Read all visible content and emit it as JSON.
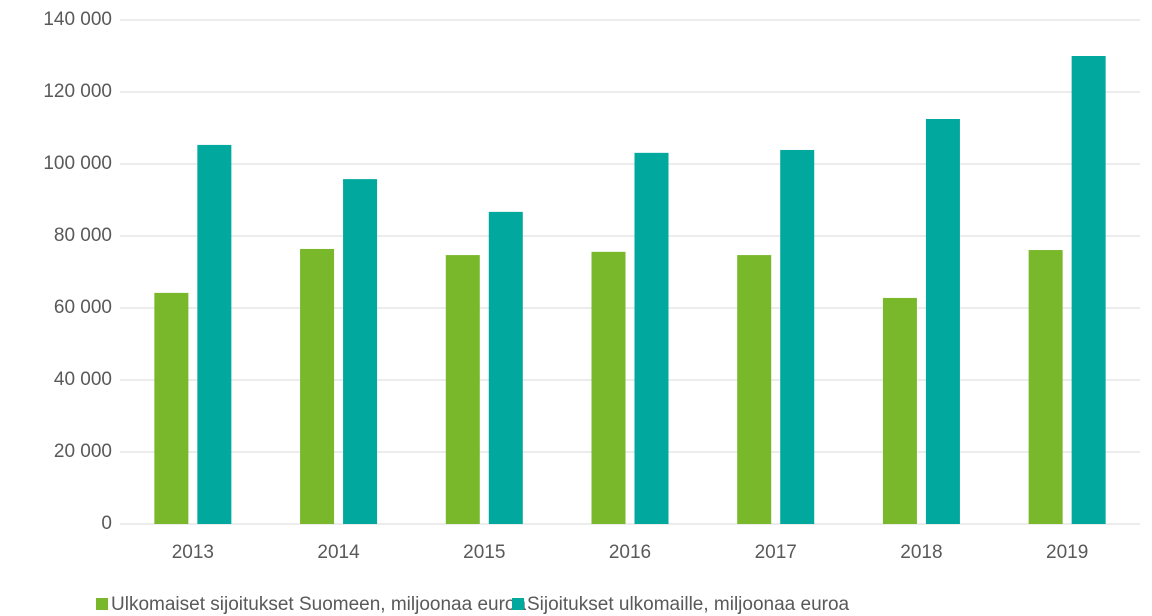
{
  "chart_data": {
    "type": "bar",
    "categories": [
      "2013",
      "2014",
      "2015",
      "2016",
      "2017",
      "2018",
      "2019"
    ],
    "series": [
      {
        "name": "Ulkomaiset sijoitukset Suomeen, miljoonaa euroa",
        "color": "#78b82a",
        "values": [
          64200,
          76400,
          74700,
          75600,
          74700,
          62800,
          76100
        ]
      },
      {
        "name": "Sijoitukset ulkomaille, miljoonaa euroa",
        "color": "#00a89d",
        "values": [
          105300,
          95800,
          86700,
          103100,
          103900,
          112500,
          130000
        ]
      }
    ],
    "ylim": [
      0,
      140000
    ],
    "yticks": [
      0,
      {
        "value": 20000,
        "label": "20 000"
      },
      {
        "value": 40000,
        "label": "40 000"
      },
      {
        "value": 60000,
        "label": "60 000"
      },
      {
        "value": 80000,
        "label": "80 000"
      },
      {
        "value": 100000,
        "label": "100 000"
      },
      {
        "value": 120000,
        "label": "120 000"
      },
      {
        "value": 140000,
        "label": "140 000"
      }
    ],
    "grid": true,
    "legend": "bottom"
  }
}
